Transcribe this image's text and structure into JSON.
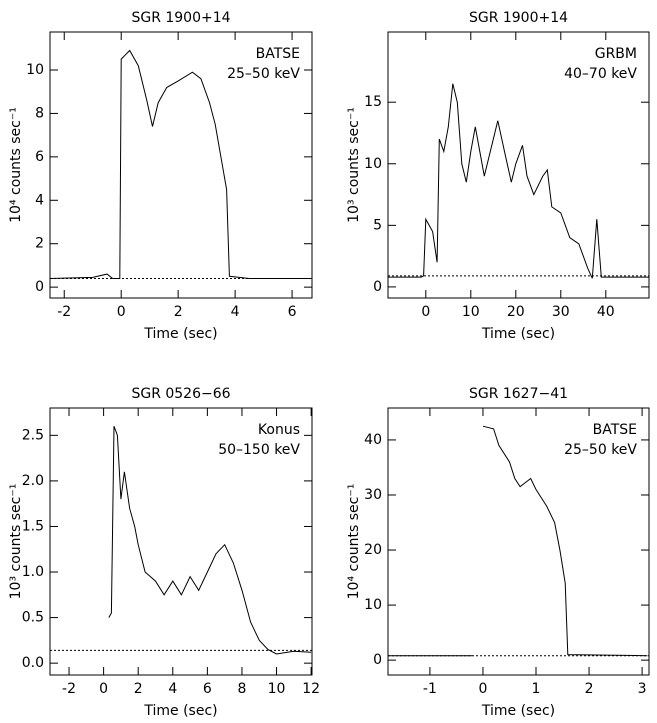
{
  "chart_data": [
    {
      "type": "line",
      "title": "SGR 1900+14",
      "annotations": [
        "BATSE",
        "25–50 keV"
      ],
      "xlabel": "Time (sec)",
      "ylabel": "10⁴ counts sec⁻¹",
      "color": "#000000",
      "x": [
        -2.5,
        -1,
        -0.5,
        -0.3,
        -0.05,
        0,
        0.3,
        0.6,
        0.9,
        1.1,
        1.3,
        1.6,
        2.0,
        2.5,
        2.8,
        3.1,
        3.3,
        3.5,
        3.7,
        3.8,
        4.5,
        6.7
      ],
      "values": [
        0.4,
        0.45,
        0.6,
        0.4,
        0.4,
        10.5,
        10.9,
        10.2,
        8.6,
        7.4,
        8.5,
        9.2,
        9.5,
        9.9,
        9.6,
        8.5,
        7.5,
        6.0,
        4.5,
        0.5,
        0.4,
        0.4
      ],
      "background": 0.4,
      "xlim": [
        -2.5,
        6.7
      ],
      "ylim": [
        -0.5,
        11.75
      ],
      "xticks": [
        -2,
        0,
        2,
        4,
        6
      ],
      "yticks": [
        0,
        2,
        4,
        6,
        8,
        10
      ]
    },
    {
      "type": "line",
      "title": "SGR 1900+14",
      "annotations": [
        "GRBM",
        "40–70 keV"
      ],
      "xlabel": "Time (sec)",
      "ylabel": "10³ counts sec⁻¹",
      "color": "#000000",
      "x": [
        -8.4,
        -1,
        -0.5,
        0,
        1.5,
        2.5,
        3,
        4,
        5,
        6,
        7,
        8,
        9,
        10,
        11,
        12,
        13,
        14,
        16,
        17.5,
        19,
        20,
        21.5,
        22.5,
        24,
        26,
        27,
        28,
        30,
        32,
        34,
        36,
        37,
        38,
        39,
        49.6
      ],
      "values": [
        0.8,
        0.8,
        0.9,
        5.5,
        4.5,
        2.0,
        12.0,
        11.0,
        13.0,
        16.5,
        15.0,
        10.0,
        8.5,
        11.0,
        13.0,
        11.0,
        9.0,
        10.5,
        13.5,
        11.0,
        8.5,
        10.0,
        11.5,
        9.0,
        7.5,
        9.0,
        9.5,
        6.5,
        6.0,
        4.0,
        3.5,
        1.5,
        0.7,
        5.5,
        0.8,
        0.8
      ],
      "background": 0.9,
      "xlim": [
        -8.4,
        49.6
      ],
      "ylim": [
        -0.9,
        20.7
      ],
      "xticks": [
        0,
        10,
        20,
        30,
        40
      ],
      "yticks": [
        0,
        5,
        10,
        15
      ]
    },
    {
      "type": "line",
      "title": "SGR 0526−66",
      "annotations": [
        "Konus",
        "50–150 keV"
      ],
      "xlabel": "Time (sec)",
      "ylabel": "10³ counts sec⁻¹",
      "color": "#000000",
      "x": [
        0.3,
        0.45,
        0.6,
        0.8,
        1.0,
        1.2,
        1.5,
        1.8,
        2.0,
        2.4,
        3.0,
        3.5,
        4.0,
        4.5,
        5.0,
        5.5,
        6.0,
        6.5,
        7.0,
        7.5,
        8.0,
        8.5,
        9.0,
        9.5,
        10.0,
        11.0,
        12.0
      ],
      "values": [
        0.5,
        0.55,
        2.6,
        2.5,
        1.8,
        2.1,
        1.7,
        1.5,
        1.3,
        1.0,
        0.9,
        0.75,
        0.9,
        0.75,
        0.95,
        0.8,
        1.0,
        1.2,
        1.3,
        1.1,
        0.8,
        0.45,
        0.25,
        0.15,
        0.1,
        0.13,
        0.12
      ],
      "background": 0.14,
      "xlim": [
        -3.1,
        12.05
      ],
      "ylim": [
        -0.13,
        2.8
      ],
      "xticks": [
        -2,
        0,
        2,
        4,
        6,
        8,
        10,
        12
      ],
      "yticks": [
        {
          "value": 0,
          "label": "0.0"
        },
        0.5,
        {
          "value": 1,
          "label": "1.0"
        },
        1.5,
        {
          "value": 2,
          "label": "2.0"
        },
        2.5
      ]
    },
    {
      "type": "line",
      "title": "SGR 1627−41",
      "annotations": [
        "BATSE",
        "25–50 keV"
      ],
      "xlabel": "Time (sec)",
      "ylabel": "10⁴ counts sec⁻¹",
      "color": "#000000",
      "x": [
        -1.79,
        -0.2,
        -0.1,
        0,
        0.2,
        0.3,
        0.5,
        0.6,
        0.7,
        0.9,
        1.0,
        1.2,
        1.35,
        1.45,
        1.55,
        1.6,
        3.1
      ],
      "values": [
        0.8,
        0.8,
        null,
        42.5,
        42,
        39,
        36,
        33,
        31.5,
        33,
        31,
        28,
        25,
        20,
        14,
        1,
        0.8
      ],
      "background": 0.8,
      "xlim": [
        -1.79,
        3.13
      ],
      "ylim": [
        -2.7,
        45.8
      ],
      "xticks": [
        -1,
        0,
        1,
        2,
        3
      ],
      "yticks": [
        0,
        10,
        20,
        30,
        40
      ]
    }
  ]
}
